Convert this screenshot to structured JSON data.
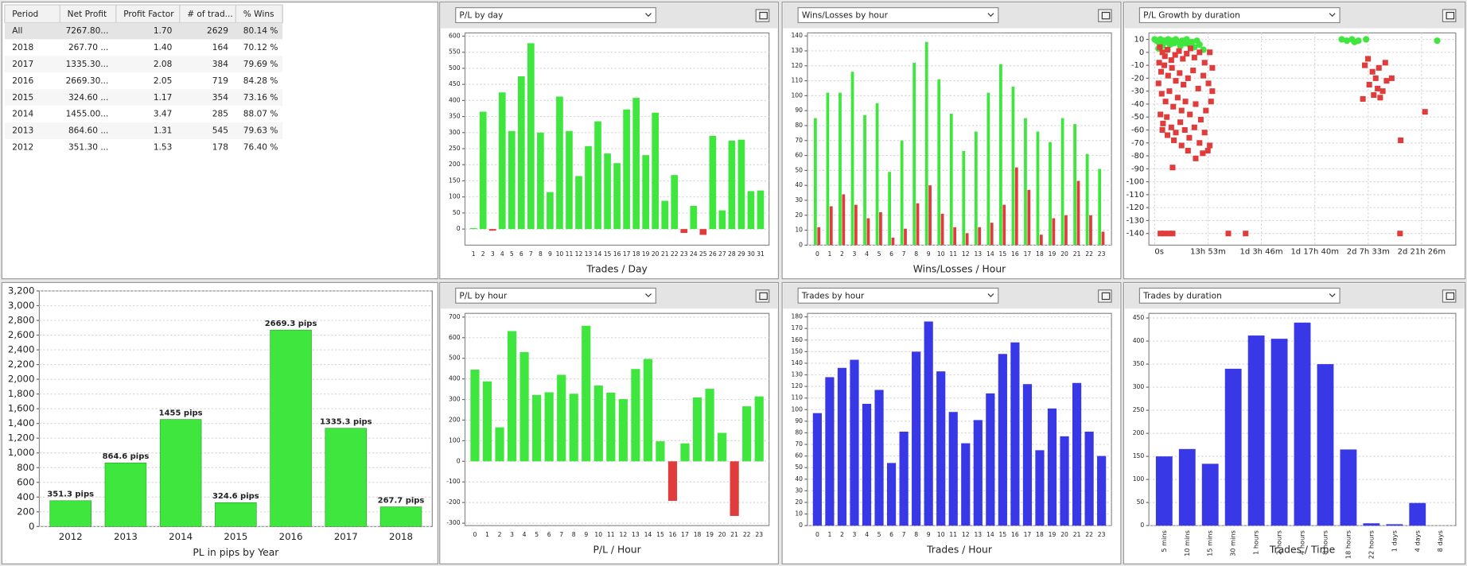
{
  "table": {
    "headers": [
      "Period",
      "Net Profit",
      "Profit Factor",
      "# of trad...",
      "% Wins"
    ],
    "rows": [
      [
        "All",
        "7267.80...",
        "1.70",
        "2629",
        "80.14 %"
      ],
      [
        "2018",
        "267.70 ...",
        "1.40",
        "164",
        "70.12 %"
      ],
      [
        "2017",
        "1335.30...",
        "2.08",
        "384",
        "79.69 %"
      ],
      [
        "2016",
        "2669.30...",
        "2.05",
        "719",
        "84.28 %"
      ],
      [
        "2015",
        "324.60 ...",
        "1.17",
        "354",
        "73.16 %"
      ],
      [
        "2014",
        "1455.00...",
        "3.47",
        "285",
        "88.07 %"
      ],
      [
        "2013",
        "864.60 ...",
        "1.31",
        "545",
        "79.63 %"
      ],
      [
        "2012",
        "351.30 ...",
        "1.53",
        "178",
        "76.40 %"
      ]
    ]
  },
  "chart_data": [
    {
      "type": "bar",
      "selector": "P/L by day",
      "x_label": "Trades / Day",
      "categories": [
        "1",
        "2",
        "3",
        "4",
        "5",
        "6",
        "7",
        "8",
        "9",
        "10",
        "11",
        "12",
        "13",
        "14",
        "15",
        "16",
        "17",
        "18",
        "19",
        "20",
        "21",
        "22",
        "23",
        "24",
        "25",
        "26",
        "27",
        "28",
        "29",
        "30",
        "31"
      ],
      "values": [
        3,
        365,
        -5,
        425,
        305,
        475,
        578,
        300,
        115,
        412,
        305,
        165,
        258,
        335,
        235,
        205,
        372,
        408,
        230,
        362,
        88,
        168,
        -12,
        72,
        -18,
        290,
        58,
        275,
        278,
        118,
        120
      ],
      "color": "#3ee63e",
      "negative_color": "#e03c3c",
      "ylim": [
        -50,
        610
      ],
      "yticks": [
        0,
        50,
        100,
        150,
        200,
        250,
        300,
        350,
        400,
        450,
        500,
        550,
        600
      ],
      "grid": true
    },
    {
      "type": "grouped_bar",
      "selector": "Wins/Losses by hour",
      "x_label": "Wins/Losses / Hour",
      "categories": [
        "0",
        "1",
        "2",
        "3",
        "4",
        "5",
        "6",
        "7",
        "8",
        "9",
        "10",
        "11",
        "12",
        "13",
        "14",
        "15",
        "16",
        "17",
        "18",
        "19",
        "20",
        "21",
        "22",
        "23"
      ],
      "series": [
        {
          "color": "#3ee63e",
          "values": [
            85,
            102,
            102,
            116,
            87,
            95,
            49,
            70,
            122,
            136,
            111,
            88,
            63,
            76,
            102,
            121,
            106,
            85,
            76,
            69,
            85,
            81,
            61,
            51
          ]
        },
        {
          "color": "#e03c3c",
          "values": [
            12,
            26,
            34,
            27,
            18,
            22,
            5,
            11,
            28,
            40,
            21,
            12,
            8,
            12,
            15,
            27,
            52,
            37,
            7,
            18,
            20,
            43,
            20,
            9
          ]
        }
      ],
      "ylim": [
        0,
        142
      ],
      "yticks": [
        0,
        10,
        20,
        30,
        40,
        50,
        60,
        70,
        80,
        90,
        100,
        110,
        120,
        130,
        140
      ],
      "grid": true
    },
    {
      "type": "scatter",
      "selector": "P/L Growth by duration",
      "series": [
        {
          "color": "#3ee63e",
          "marker": "circle",
          "x": [
            0,
            30,
            60,
            90,
            120,
            150,
            180,
            210,
            240,
            270,
            300,
            330,
            360,
            400,
            430,
            470,
            500,
            540,
            580,
            620,
            660,
            700,
            760,
            60,
            120,
            200,
            2920,
            3000,
            3080,
            3180,
            3300,
            3120,
            4410
          ],
          "values": [
            10,
            9,
            8,
            10,
            7,
            9,
            8,
            10,
            6,
            9,
            7,
            10,
            8,
            5,
            9,
            7,
            10,
            6,
            8,
            4,
            9,
            6,
            2,
            3,
            5,
            2,
            10,
            9,
            10,
            9,
            10,
            8,
            9
          ]
        },
        {
          "color": "#e03c3c",
          "marker": "square",
          "x": [
            80,
            120,
            160,
            200,
            260,
            320,
            380,
            440,
            500,
            560,
            620,
            700,
            780,
            860,
            900,
            100,
            150,
            210,
            270,
            330,
            390,
            450,
            520,
            600,
            680,
            760,
            840,
            900,
            110,
            170,
            230,
            290,
            360,
            420,
            480,
            550,
            640,
            720,
            800,
            880,
            130,
            190,
            260,
            330,
            400,
            470,
            540,
            620,
            700,
            780,
            860,
            120,
            200,
            300,
            420,
            520,
            640,
            750,
            830,
            90,
            60,
            70,
            280,
            90,
            150,
            230,
            280,
            1150,
            1420,
            3830,
            3840,
            4220,
            3280,
            3330,
            3400,
            3450,
            3350,
            3500,
            3560,
            3620,
            3520,
            3600,
            3700,
            3480,
            3250,
            3420
          ],
          "values": [
            4,
            0,
            -3,
            2,
            -6,
            -2,
            1,
            -5,
            -1,
            3,
            -4,
            0,
            -8,
            0,
            -12,
            -15,
            -10,
            -18,
            -12,
            -22,
            -16,
            -25,
            -20,
            -14,
            -28,
            -18,
            -24,
            -30,
            -32,
            -38,
            -30,
            -42,
            -35,
            -45,
            -38,
            -48,
            -40,
            -52,
            -45,
            -38,
            -55,
            -50,
            -58,
            -62,
            -54,
            -60,
            -66,
            -58,
            -70,
            -62,
            -72,
            -60,
            -64,
            -68,
            -72,
            -76,
            -82,
            -78,
            -76,
            -48,
            -24,
            -8,
            -89,
            -140,
            -140,
            -140,
            -140,
            -140,
            -140,
            -140,
            -68,
            -46,
            -10,
            -5,
            -15,
            -20,
            -25,
            -12,
            -30,
            -22,
            -35,
            -8,
            -20,
            -28,
            -36,
            -33
          ]
        }
      ],
      "xlim": [
        -90,
        4700
      ],
      "xticks": [
        {
          "value": 0,
          "label": "0s"
        },
        {
          "value": 833,
          "label": "13h 53m"
        },
        {
          "value": 1666,
          "label": "1d 3h 46m"
        },
        {
          "value": 2500,
          "label": "1d 17h 40m"
        },
        {
          "value": 3333,
          "label": "2d 7h 33m"
        },
        {
          "value": 4166,
          "label": "2d 21h 26m"
        }
      ],
      "ylim": [
        -149,
        15
      ],
      "yticks": [
        10,
        0,
        -10,
        -20,
        -30,
        -40,
        -50,
        -60,
        -70,
        -80,
        -90,
        -100,
        -110,
        -120,
        -130,
        -140
      ],
      "grid": true
    },
    {
      "type": "bar",
      "x_label": "PL in pips by Year",
      "categories": [
        "2012",
        "2013",
        "2014",
        "2015",
        "2016",
        "2017",
        "2018"
      ],
      "values": [
        351.3,
        864.6,
        1455,
        324.6,
        2669.3,
        1335.3,
        267.7
      ],
      "value_labels": [
        "351.3 pips",
        "864.6 pips",
        "1455 pips",
        "324.6 pips",
        "2669.3 pips",
        "1335.3 pips",
        "267.7 pips"
      ],
      "color": "#3ee63e",
      "ylim": [
        0,
        3200
      ],
      "yticks": [
        0,
        200,
        400,
        600,
        800,
        {
          "value": 1000,
          "label": "1,000"
        },
        {
          "value": 1200,
          "label": "1,200"
        },
        {
          "value": 1400,
          "label": "1,400"
        },
        {
          "value": 1600,
          "label": "1,600"
        },
        {
          "value": 1800,
          "label": "1,800"
        },
        {
          "value": 2000,
          "label": "2,000"
        },
        {
          "value": 2200,
          "label": "2,200"
        },
        {
          "value": 2400,
          "label": "2,400"
        },
        {
          "value": 2600,
          "label": "2,600"
        },
        {
          "value": 2800,
          "label": "2,800"
        },
        {
          "value": 3000,
          "label": "3,000"
        },
        {
          "value": 3200,
          "label": "3,200"
        }
      ],
      "grid": true
    },
    {
      "type": "bar",
      "selector": "P/L by hour",
      "x_label": "P/L / Hour",
      "categories": [
        "0",
        "1",
        "2",
        "3",
        "4",
        "5",
        "6",
        "7",
        "8",
        "9",
        "10",
        "11",
        "12",
        "13",
        "14",
        "15",
        "16",
        "17",
        "18",
        "19",
        "20",
        "21",
        "22",
        "23"
      ],
      "values": [
        445,
        388,
        165,
        632,
        530,
        322,
        335,
        420,
        328,
        658,
        368,
        333,
        302,
        448,
        497,
        97,
        -192,
        87,
        310,
        352,
        138,
        -265,
        267,
        315
      ],
      "color": "#3ee63e",
      "negative_color": "#e03c3c",
      "ylim": [
        -312,
        718
      ],
      "yticks": [
        -300,
        -200,
        -100,
        0,
        100,
        200,
        300,
        400,
        500,
        600,
        700
      ],
      "grid": true
    },
    {
      "type": "bar",
      "selector": "Trades by hour",
      "x_label": "Trades / Hour",
      "categories": [
        "0",
        "1",
        "2",
        "3",
        "4",
        "5",
        "6",
        "7",
        "8",
        "9",
        "10",
        "11",
        "12",
        "13",
        "14",
        "15",
        "16",
        "17",
        "18",
        "19",
        "20",
        "21",
        "22",
        "23"
      ],
      "values": [
        97,
        128,
        136,
        143,
        105,
        117,
        54,
        81,
        150,
        176,
        133,
        98,
        71,
        91,
        114,
        148,
        158,
        122,
        65,
        101,
        77,
        123,
        81,
        60
      ],
      "color": "#3838e6",
      "ylim": [
        0,
        183
      ],
      "yticks": [
        0,
        10,
        20,
        30,
        40,
        50,
        60,
        70,
        80,
        90,
        100,
        110,
        120,
        130,
        140,
        150,
        160,
        170,
        180
      ],
      "grid": true
    },
    {
      "type": "bar",
      "selector": "Trades by duration",
      "x_label": "Trades / Time",
      "rotate_labels": true,
      "categories": [
        "5 mins",
        "10 mins",
        "15 mins",
        "30 mins",
        "1 hours",
        "2 hours",
        "4 hours",
        "8 hours",
        "18 hours",
        "22 hours",
        "1 days",
        "4 days",
        "8 days"
      ],
      "values": [
        150,
        166,
        134,
        340,
        412,
        405,
        440,
        350,
        165,
        5,
        3,
        49,
        0
      ],
      "color": "#3838e6",
      "ylim": [
        0,
        460
      ],
      "yticks": [
        0,
        50,
        100,
        150,
        200,
        250,
        300,
        350,
        400,
        450
      ],
      "grid": true
    }
  ]
}
